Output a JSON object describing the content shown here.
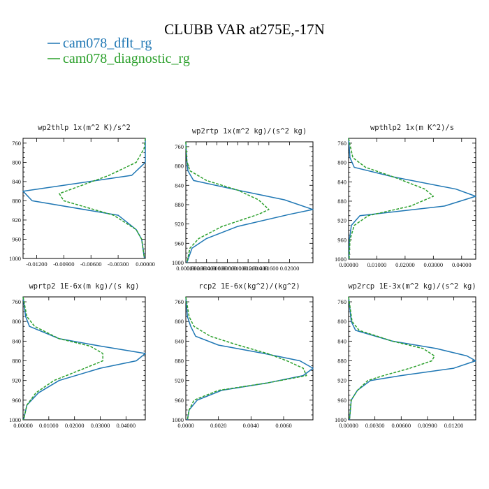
{
  "figure": {
    "title": "CLUBB VAR at275E,-17N",
    "legend": [
      {
        "label": "cam078_dflt_rg",
        "color": "#1f77b4",
        "dash": "solid"
      },
      {
        "label": "cam078_diagnostic_rg",
        "color": "#2ca02c",
        "dash": "dashed"
      }
    ]
  },
  "chart_data": [
    {
      "type": "line",
      "title": "wp2thlp  1x(m^2 K)/s^2",
      "xlim": [
        -0.0135,
        0.0
      ],
      "ylim": [
        1000,
        750
      ],
      "xticks": [
        -0.012,
        -0.009,
        -0.006,
        -0.003,
        0.0
      ],
      "xticklabels": [
        "-0.01200",
        "-0.00900",
        "-0.00600",
        "-0.00300",
        "0.00000"
      ],
      "yticks": [
        760,
        800,
        840,
        880,
        920,
        960,
        1000
      ],
      "series": [
        {
          "name": "cam078_dflt_rg",
          "y": [
            750,
            770,
            800,
            827,
            860,
            880,
            910,
            940,
            960,
            1000
          ],
          "x": [
            0.0,
            0.0,
            0.0,
            -0.0015,
            -0.0135,
            -0.0125,
            -0.003,
            -0.001,
            -0.0004,
            -0.0001
          ]
        },
        {
          "name": "cam078_diagnostic_rg",
          "y": [
            750,
            770,
            800,
            827,
            865,
            880,
            910,
            940,
            960,
            1000
          ],
          "x": [
            0.0,
            -0.0001,
            -0.001,
            -0.004,
            -0.0095,
            -0.009,
            -0.0035,
            -0.001,
            -0.0004,
            -0.0001
          ]
        }
      ]
    },
    {
      "type": "line",
      "title": "wp2rtp  1x(m^2 kg)/(s^2 kg)",
      "xlim": [
        0.0,
        0.0245
      ],
      "ylim": [
        1000,
        750
      ],
      "xticks": [
        0.0,
        0.002,
        0.004,
        0.006,
        0.008,
        0.01,
        0.012,
        0.014,
        0.016,
        0.02
      ],
      "xticklabels": [
        "0.00000",
        "0.00200",
        "0.00400",
        "0.00600",
        "0.00800",
        "0.01000",
        "0.01200",
        "0.01400",
        "0.01600",
        "0.02000"
      ],
      "yticks": [
        760,
        800,
        840,
        880,
        920,
        960,
        1000
      ],
      "series": [
        {
          "name": "cam078_dflt_rg",
          "y": [
            750,
            790,
            810,
            830,
            850,
            870,
            890,
            900,
            925,
            950,
            970,
            1000
          ],
          "x": [
            0.0,
            0.0002,
            0.0004,
            0.0015,
            0.01,
            0.019,
            0.0245,
            0.02,
            0.01,
            0.004,
            0.0012,
            0.0002
          ]
        },
        {
          "name": "cam078_diagnostic_rg",
          "y": [
            750,
            790,
            810,
            830,
            850,
            870,
            890,
            900,
            925,
            950,
            970,
            1000
          ],
          "x": [
            0.0,
            0.0002,
            0.0008,
            0.004,
            0.01,
            0.014,
            0.016,
            0.014,
            0.007,
            0.0025,
            0.0008,
            0.0002
          ]
        }
      ]
    },
    {
      "type": "line",
      "title": "wpthlp2  1x(m K^2)/s",
      "xlim": [
        0.0,
        0.045
      ],
      "ylim": [
        1000,
        750
      ],
      "xticks": [
        0.0,
        0.01,
        0.02,
        0.03,
        0.04
      ],
      "xticklabels": [
        "0.00000",
        "0.01000",
        "0.02000",
        "0.03000",
        "0.04000"
      ],
      "yticks": [
        760,
        800,
        840,
        880,
        920,
        960,
        1000
      ],
      "series": [
        {
          "name": "cam078_dflt_rg",
          "y": [
            750,
            790,
            810,
            830,
            855,
            870,
            890,
            910,
            930,
            960,
            1000
          ],
          "x": [
            0.0,
            0.0005,
            0.002,
            0.016,
            0.038,
            0.045,
            0.034,
            0.004,
            0.001,
            0.0003,
            0.0001
          ]
        },
        {
          "name": "cam078_diagnostic_rg",
          "y": [
            750,
            790,
            810,
            830,
            855,
            870,
            890,
            910,
            930,
            960,
            1000
          ],
          "x": [
            0.0,
            0.0015,
            0.006,
            0.016,
            0.027,
            0.03,
            0.022,
            0.007,
            0.002,
            0.0005,
            0.0002
          ]
        }
      ]
    },
    {
      "type": "line",
      "title": "wprtp2  1E-6x(m kg)/(s kg)",
      "xlim": [
        0.0,
        0.0475
      ],
      "ylim": [
        1000,
        750
      ],
      "xticks": [
        0.0,
        0.01,
        0.02,
        0.03,
        0.04
      ],
      "xticklabels": [
        "0.00000",
        "0.01000",
        "0.02000",
        "0.03000",
        "0.04000"
      ],
      "yticks": [
        760,
        800,
        840,
        880,
        920,
        960,
        1000
      ],
      "series": [
        {
          "name": "cam078_dflt_rg",
          "y": [
            750,
            790,
            810,
            835,
            850,
            865,
            880,
            895,
            920,
            945,
            970,
            1000
          ],
          "x": [
            0.0,
            0.001,
            0.0025,
            0.014,
            0.03,
            0.0475,
            0.044,
            0.03,
            0.014,
            0.006,
            0.0015,
            0.0002
          ]
        },
        {
          "name": "cam078_diagnostic_rg",
          "y": [
            750,
            790,
            810,
            835,
            850,
            865,
            880,
            895,
            920,
            945,
            970,
            1000
          ],
          "x": [
            0.0,
            0.0015,
            0.0045,
            0.014,
            0.026,
            0.031,
            0.031,
            0.024,
            0.012,
            0.005,
            0.0015,
            0.0002
          ]
        }
      ]
    },
    {
      "type": "line",
      "title": "rcp2  1E-6x(kg^2)/(kg^2)",
      "xlim": [
        0.0,
        0.0078
      ],
      "ylim": [
        1000,
        750
      ],
      "xticks": [
        0.0,
        0.002,
        0.004,
        0.006
      ],
      "xticklabels": [
        "0.0000",
        "0.0020",
        "0.0040",
        "0.0060"
      ],
      "yticks": [
        760,
        800,
        840,
        880,
        920,
        960,
        1000
      ],
      "series": [
        {
          "name": "cam078_dflt_rg",
          "y": [
            750,
            790,
            810,
            830,
            848,
            865,
            880,
            895,
            910,
            925,
            940,
            960,
            980,
            1000
          ],
          "x": [
            0.0,
            0.0001,
            0.0003,
            0.0006,
            0.002,
            0.0048,
            0.007,
            0.0078,
            0.0072,
            0.005,
            0.0022,
            0.0007,
            0.0002,
            0.0001
          ]
        },
        {
          "name": "cam078_diagnostic_rg",
          "y": [
            750,
            790,
            810,
            830,
            848,
            865,
            880,
            895,
            910,
            925,
            940,
            960,
            980,
            1000
          ],
          "x": [
            0.0,
            0.0002,
            0.0005,
            0.0015,
            0.0032,
            0.005,
            0.0062,
            0.0072,
            0.0074,
            0.005,
            0.002,
            0.0005,
            0.0002,
            0.0001
          ]
        }
      ]
    },
    {
      "type": "line",
      "title": "wp2rcp  1E-3x(m^2 kg)/(s^2 kg)",
      "xlim": [
        0.0,
        0.0145
      ],
      "ylim": [
        1000,
        750
      ],
      "xticks": [
        0.0,
        0.003,
        0.006,
        0.009,
        0.012
      ],
      "xticklabels": [
        "0.00000",
        "0.00300",
        "0.00600",
        "0.00900",
        "0.01200"
      ],
      "yticks": [
        760,
        800,
        840,
        880,
        920,
        960,
        1000
      ],
      "series": [
        {
          "name": "cam078_dflt_rg",
          "y": [
            750,
            800,
            818,
            840,
            855,
            870,
            880,
            895,
            910,
            920,
            940,
            960,
            1000
          ],
          "x": [
            0.0,
            0.0003,
            0.0008,
            0.005,
            0.01,
            0.0135,
            0.0145,
            0.012,
            0.006,
            0.0025,
            0.001,
            0.0003,
            0.0001
          ]
        },
        {
          "name": "cam078_diagnostic_rg",
          "y": [
            750,
            800,
            818,
            840,
            855,
            870,
            880,
            895,
            910,
            920,
            940,
            960,
            1000
          ],
          "x": [
            0.0,
            0.0004,
            0.0012,
            0.005,
            0.0085,
            0.0098,
            0.0095,
            0.007,
            0.004,
            0.0022,
            0.001,
            0.0003,
            0.0001
          ]
        }
      ]
    }
  ]
}
